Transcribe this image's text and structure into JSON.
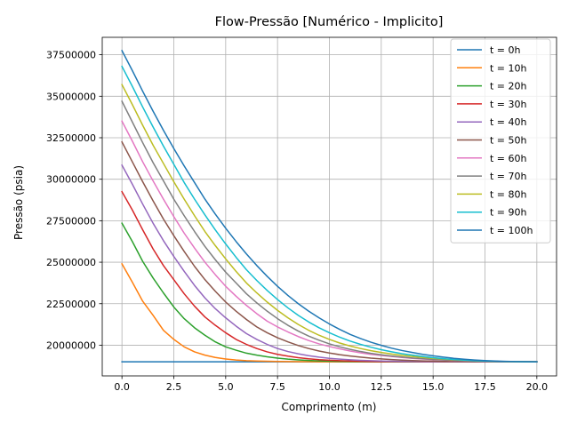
{
  "chart_data": {
    "type": "line",
    "title": "Flow-Pressão [Numérico - Implicito]",
    "xlabel": "Comprimento (m)",
    "ylabel": "Pressão (psia)",
    "xlim": [
      -0.95,
      20.95
    ],
    "ylim": [
      18150000,
      38550000
    ],
    "xticks": [
      0.0,
      2.5,
      5.0,
      7.5,
      10.0,
      12.5,
      15.0,
      17.5,
      20.0
    ],
    "xtick_labels": [
      "0.0",
      "2.5",
      "5.0",
      "7.5",
      "10.0",
      "12.5",
      "15.0",
      "17.5",
      "20.0"
    ],
    "yticks": [
      20000000,
      22500000,
      25000000,
      27500000,
      30000000,
      32500000,
      35000000,
      37500000
    ],
    "ytick_labels": [
      "20000000",
      "22500000",
      "25000000",
      "27500000",
      "30000000",
      "32500000",
      "35000000",
      "37500000"
    ],
    "grid": true,
    "legend_position": "upper right",
    "x": [
      0,
      0.5,
      1,
      1.5,
      2,
      2.5,
      3,
      3.5,
      4,
      4.5,
      5,
      5.5,
      6,
      6.5,
      7,
      7.5,
      8,
      8.5,
      9,
      9.5,
      10,
      10.5,
      11,
      11.5,
      12,
      12.5,
      13,
      13.5,
      14,
      14.5,
      15,
      15.5,
      16,
      16.5,
      17,
      17.5,
      18,
      18.5,
      19,
      19.5,
      20
    ],
    "series": [
      {
        "name": "t = 0h",
        "color": "#1f77b4",
        "values": [
          19000000,
          19000000,
          19000000,
          19000000,
          19000000,
          19000000,
          19000000,
          19000000,
          19000000,
          19000000,
          19000000,
          19000000,
          19000000,
          19000000,
          19000000,
          19000000,
          19000000,
          19000000,
          19000000,
          19000000,
          19000000,
          19000000,
          19000000,
          19000000,
          19000000,
          19000000,
          19000000,
          19000000,
          19000000,
          19000000,
          19000000,
          19000000,
          19000000,
          19000000,
          19000000,
          19000000,
          19000000,
          19000000,
          19000000,
          19000000,
          19000000
        ]
      },
      {
        "name": "t = 10h",
        "color": "#ff7f0e",
        "values": [
          24900000,
          23800000,
          22650000,
          21800000,
          20900000,
          20350000,
          19900000,
          19600000,
          19400000,
          19260000,
          19170000,
          19110000,
          19070000,
          19045000,
          19030000,
          19020000,
          19013000,
          19008000,
          19005000,
          19003000,
          19002000,
          19001000,
          19001000,
          19000000,
          19000000,
          19000000,
          19000000,
          19000000,
          19000000,
          19000000,
          19000000,
          19000000,
          19000000,
          19000000,
          19000000,
          19000000,
          19000000,
          19000000,
          19000000,
          19000000,
          19000000
        ]
      },
      {
        "name": "t = 20h",
        "color": "#2ca02c",
        "values": [
          27350000,
          26250000,
          25050000,
          24050000,
          23150000,
          22300000,
          21600000,
          21050000,
          20600000,
          20200000,
          19900000,
          19700000,
          19520000,
          19400000,
          19300000,
          19220000,
          19160000,
          19115000,
          19080000,
          19055000,
          19040000,
          19028000,
          19019000,
          19013000,
          19009000,
          19006000,
          19004000,
          19003000,
          19002000,
          19001000,
          19001000,
          19000000,
          19000000,
          19000000,
          19000000,
          19000000,
          19000000,
          19000000,
          19000000,
          19000000,
          19000000
        ]
      },
      {
        "name": "t = 30h",
        "color": "#d62728",
        "values": [
          29250000,
          28150000,
          26950000,
          25800000,
          24800000,
          23950000,
          23100000,
          22350000,
          21700000,
          21200000,
          20750000,
          20350000,
          20050000,
          19800000,
          19600000,
          19450000,
          19340000,
          19250000,
          19180000,
          19130000,
          19095000,
          19068000,
          19048000,
          19033000,
          19023000,
          19016000,
          19011000,
          19007000,
          19005000,
          19003000,
          19002000,
          19001000,
          19001000,
          19000000,
          19000000,
          19000000,
          19000000,
          19000000,
          19000000,
          19000000,
          19000000
        ]
      },
      {
        "name": "t = 40h",
        "color": "#9467bd",
        "values": [
          30850000,
          29700000,
          28500000,
          27350000,
          26300000,
          25350000,
          24450000,
          23600000,
          22850000,
          22200000,
          21650000,
          21150000,
          20700000,
          20350000,
          20050000,
          19800000,
          19620000,
          19480000,
          19370000,
          19280000,
          19210000,
          19160000,
          19120000,
          19088000,
          19065000,
          19047000,
          19034000,
          19024000,
          19017000,
          19012000,
          19008000,
          19005000,
          19003000,
          19002000,
          19001000,
          19001000,
          19000000,
          19000000,
          19000000,
          19000000,
          19000000
        ]
      },
      {
        "name": "t = 50h",
        "color": "#8c564b",
        "values": [
          32250000,
          31050000,
          29850000,
          28700000,
          27600000,
          26600000,
          25650000,
          24750000,
          23950000,
          23250000,
          22600000,
          22050000,
          21550000,
          21100000,
          20750000,
          20450000,
          20200000,
          19980000,
          19800000,
          19650000,
          19530000,
          19430000,
          19350000,
          19280000,
          19220000,
          19175000,
          19135000,
          19100000,
          19075000,
          19055000,
          19040000,
          19029000,
          19020000,
          19014000,
          19010000,
          19007000,
          19005000,
          19003000,
          19002000,
          19001000,
          19000000
        ]
      },
      {
        "name": "t = 60h",
        "color": "#e377c2",
        "values": [
          33500000,
          32300000,
          31050000,
          29900000,
          28800000,
          27750000,
          26750000,
          25850000,
          25000000,
          24250000,
          23550000,
          22950000,
          22400000,
          21900000,
          21450000,
          21100000,
          20800000,
          20520000,
          20280000,
          20080000,
          19920000,
          19780000,
          19650000,
          19540000,
          19450000,
          19380000,
          19320000,
          19260000,
          19210000,
          19170000,
          19135000,
          19105000,
          19080000,
          19060000,
          19045000,
          19032000,
          19022000,
          19014000,
          19008000,
          19004000,
          19000000
        ]
      },
      {
        "name": "t = 70h",
        "color": "#7f7f7f",
        "values": [
          34700000,
          33450000,
          32200000,
          31000000,
          29900000,
          28800000,
          27800000,
          26850000,
          25950000,
          25150000,
          24400000,
          23750000,
          23100000,
          22550000,
          22050000,
          21600000,
          21200000,
          20850000,
          20550000,
          20300000,
          20080000,
          19900000,
          19750000,
          19620000,
          19510000,
          19420000,
          19350000,
          19285000,
          19230000,
          19185000,
          19148000,
          19117000,
          19090000,
          19068000,
          19050000,
          19036000,
          19025000,
          19016000,
          19009000,
          19004000,
          19000000
        ]
      },
      {
        "name": "t = 80h",
        "color": "#bcbd22",
        "values": [
          35700000,
          34500000,
          33250000,
          32050000,
          30950000,
          29850000,
          28800000,
          27800000,
          26850000,
          26000000,
          25200000,
          24450000,
          23750000,
          23150000,
          22600000,
          22100000,
          21650000,
          21250000,
          20900000,
          20600000,
          20350000,
          20130000,
          19950000,
          19800000,
          19670000,
          19560000,
          19470000,
          19390000,
          19320000,
          19260000,
          19210000,
          19165000,
          19125000,
          19092000,
          19065000,
          19044000,
          19028000,
          19016000,
          19008000,
          19003000,
          19000000
        ]
      },
      {
        "name": "t = 90h",
        "color": "#17becf",
        "values": [
          36800000,
          35600000,
          34350000,
          33150000,
          32000000,
          30900000,
          29800000,
          28800000,
          27850000,
          26950000,
          26100000,
          25300000,
          24550000,
          23900000,
          23300000,
          22750000,
          22250000,
          21800000,
          21400000,
          21050000,
          20750000,
          20480000,
          20250000,
          20050000,
          19880000,
          19730000,
          19600000,
          19490000,
          19400000,
          19320000,
          19250000,
          19190000,
          19140000,
          19100000,
          19068000,
          19044000,
          19027000,
          19015000,
          19008000,
          19003000,
          19000000
        ]
      },
      {
        "name": "t = 100h",
        "color": "#1f77b4",
        "values": [
          37750000,
          36550000,
          35300000,
          34100000,
          32950000,
          31850000,
          30800000,
          29800000,
          28800000,
          27900000,
          27050000,
          26250000,
          25500000,
          24800000,
          24150000,
          23550000,
          23000000,
          22500000,
          22050000,
          21650000,
          21280000,
          20950000,
          20650000,
          20400000,
          20180000,
          19990000,
          19820000,
          19680000,
          19560000,
          19450000,
          19360000,
          19280000,
          19210000,
          19155000,
          19110000,
          19075000,
          19048000,
          19028000,
          19014000,
          19005000,
          19000000
        ]
      }
    ]
  }
}
